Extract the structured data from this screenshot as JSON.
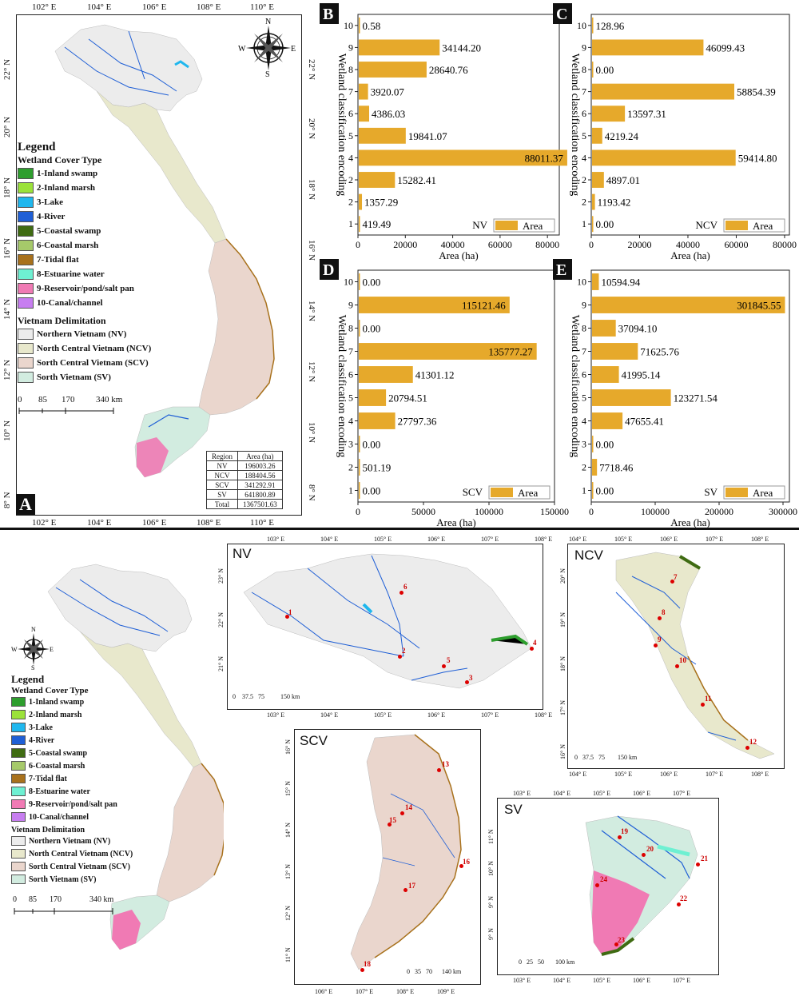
{
  "panel_a": {
    "letter": "A",
    "top_ticks": [
      "102° E",
      "104° E",
      "106° E",
      "108° E",
      "110° E"
    ],
    "bottom_ticks": [
      "102° E",
      "104° E",
      "106° E",
      "108° E",
      "110° E"
    ],
    "lat_ticks": [
      "22° N",
      "20° N",
      "18° N",
      "16° N",
      "14° N",
      "12° N",
      "10° N",
      "8° N"
    ],
    "compass": {
      "n": "N",
      "s": "S",
      "e": "E",
      "w": "W"
    },
    "scale": [
      "0",
      "85",
      "170",
      "340 km"
    ],
    "area_table": {
      "header": [
        "Region",
        "Area (ha)"
      ],
      "rows": [
        [
          "NV",
          "196003.26"
        ],
        [
          "NCV",
          "188404.56"
        ],
        [
          "SCV",
          "341292.91"
        ],
        [
          "SV",
          "641800.89"
        ],
        [
          "Total",
          "1367501.63"
        ]
      ]
    }
  },
  "legend": {
    "title": "Legend",
    "cover_title": "Wetland Cover Type",
    "cover_items": [
      {
        "label": "1-Inland swamp",
        "color": "#2e9e2e"
      },
      {
        "label": "2-Inland marsh",
        "color": "#9be23a"
      },
      {
        "label": "3-Lake",
        "color": "#1fb7ee"
      },
      {
        "label": "4-River",
        "color": "#1f5fd6"
      },
      {
        "label": "5-Coastal swamp",
        "color": "#3f6b12"
      },
      {
        "label": "6-Coastal marsh",
        "color": "#a6c96a"
      },
      {
        "label": "7-Tidal flat",
        "color": "#a8711c"
      },
      {
        "label": "8-Estuarine water",
        "color": "#6ef0d2"
      },
      {
        "label": "9-Reservoir/pond/salt pan",
        "color": "#f07ab4"
      },
      {
        "label": "10-Canal/channel",
        "color": "#c77ef0"
      }
    ],
    "delim_title": "Vietnam Delimitation",
    "delim_items": [
      {
        "label": "Northern Vietnam (NV)",
        "color": "#ececec"
      },
      {
        "label": "North Central Vietnam (NCV)",
        "color": "#e8e8cc"
      },
      {
        "label": "Sorth Central Vietnam (SCV)",
        "color": "#ead6cd"
      },
      {
        "label": "Sorth Vietnam (SV)",
        "color": "#d2ece0"
      }
    ]
  },
  "colors": {
    "bar": "#e6a92b",
    "land_nv": "#ececec",
    "land_ncv": "#e8e8cc",
    "land_scv": "#ead6cd",
    "land_sv": "#d2ece0",
    "river": "#1f5fd6",
    "site": "#dd0000"
  },
  "chart_data": [
    {
      "panel": "B",
      "type": "bar",
      "orientation": "horizontal",
      "legend": "Area",
      "region_label": "NV",
      "xlabel": "Area (ha)",
      "ylabel": "Wetland classification encoding",
      "categories": [
        "10",
        "9",
        "8",
        "7",
        "6",
        "5",
        "4",
        "2",
        "2",
        "1"
      ],
      "values": [
        0.58,
        34144.2,
        28640.76,
        3920.07,
        4386.03,
        19841.07,
        88011.37,
        15282.41,
        1357.29,
        419.49
      ],
      "value_labels": [
        "0.58",
        "34144.20",
        "28640.76",
        "3920.07",
        "4386.03",
        "19841.07",
        "88011.37",
        "15282.41",
        "1357.29",
        "419.49"
      ],
      "xlim": [
        0,
        85000
      ],
      "xticks": [
        "0",
        "20000",
        "40000",
        "60000",
        "80000"
      ]
    },
    {
      "panel": "C",
      "type": "bar",
      "orientation": "horizontal",
      "legend": "Area",
      "region_label": "NCV",
      "xlabel": "Area (ha)",
      "ylabel": "Wetland classification encoding",
      "categories": [
        "10",
        "9",
        "8",
        "7",
        "6",
        "5",
        "4",
        "2",
        "2",
        "1"
      ],
      "values": [
        128.96,
        46099.43,
        0.0,
        58854.39,
        13597.31,
        4219.24,
        59414.8,
        4897.01,
        1193.42,
        0.0
      ],
      "value_labels": [
        "128.96",
        "46099.43",
        "0.00",
        "58854.39",
        "13597.31",
        "4219.24",
        "59414.80",
        "4897.01",
        "1193.42",
        "0.00"
      ],
      "xlim": [
        0,
        82000
      ],
      "xticks": [
        "0",
        "20000",
        "40000",
        "60000",
        "80000"
      ]
    },
    {
      "panel": "D",
      "type": "bar",
      "orientation": "horizontal",
      "legend": "Area",
      "region_label": "SCV",
      "xlabel": "Area (ha)",
      "ylabel": "Wetland classification encoding",
      "categories": [
        "10",
        "9",
        "8",
        "7",
        "6",
        "5",
        "4",
        "3",
        "2",
        "1"
      ],
      "values": [
        0.0,
        115121.46,
        0.0,
        135777.27,
        41301.12,
        20794.51,
        27797.36,
        0.0,
        501.19,
        0.0
      ],
      "value_labels": [
        "0.00",
        "115121.46",
        "0.00",
        "135777.27",
        "41301.12",
        "20794.51",
        "27797.36",
        "0.00",
        "501.19",
        "0.00"
      ],
      "xlim": [
        0,
        150000
      ],
      "xticks": [
        "0",
        "50000",
        "100000",
        "150000"
      ]
    },
    {
      "panel": "E",
      "type": "bar",
      "orientation": "horizontal",
      "legend": "Area",
      "region_label": "SV",
      "xlabel": "Area (ha)",
      "ylabel": "Wetland classification encoding",
      "categories": [
        "10",
        "9",
        "8",
        "7",
        "6",
        "5",
        "4",
        "3",
        "2",
        "1"
      ],
      "values": [
        10594.94,
        301845.55,
        37094.1,
        71625.76,
        41995.14,
        123271.54,
        47655.41,
        0.0,
        7718.46,
        0.0
      ],
      "value_labels": [
        "10594.94",
        "301845.55",
        "37094.10",
        "71625.76",
        "41995.14",
        "123271.54",
        "47655.41",
        "0.00",
        "7718.46",
        "0.00"
      ],
      "xlim": [
        0,
        310000
      ],
      "xticks": [
        "0",
        "100000",
        "200000",
        "300000"
      ]
    }
  ],
  "bottom": {
    "compass": {
      "n": "N",
      "s": "S",
      "e": "E",
      "w": "W"
    },
    "scale": [
      "0",
      "85",
      "170",
      "340 km"
    ],
    "nv": {
      "title": "NV",
      "top_ticks": [
        "103° E",
        "104° E",
        "105° E",
        "106° E",
        "107° E",
        "108° E"
      ],
      "bottom_ticks": [
        "103° E",
        "104° E",
        "105° E",
        "106° E",
        "107° E",
        "108° E"
      ],
      "lat": [
        "23° N",
        "22° N",
        "21° N"
      ],
      "scale": [
        "0",
        "37.5",
        "75",
        "150 km"
      ],
      "sites": [
        "1",
        "2",
        "3",
        "4",
        "5",
        "6"
      ]
    },
    "ncv": {
      "title": "NCV",
      "top_ticks": [
        "104° E",
        "105° E",
        "106° E",
        "107° E",
        "108° E"
      ],
      "bottom_ticks": [
        "104° E",
        "105° E",
        "106° E",
        "107° E",
        "108° E"
      ],
      "lat": [
        "20° N",
        "19° N",
        "18° N",
        "17° N",
        "16° N"
      ],
      "scale": [
        "0",
        "37.5",
        "75",
        "150 km"
      ],
      "sites": [
        "7",
        "8",
        "9",
        "10",
        "11",
        "12"
      ]
    },
    "scv": {
      "title": "SCV",
      "bottom_ticks": [
        "106° E",
        "107° E",
        "108° E",
        "109° E"
      ],
      "lat": [
        "16° N",
        "15° N",
        "14° N",
        "13° N",
        "12° N",
        "11° N"
      ],
      "scale": [
        "0",
        "35",
        "70",
        "140 km"
      ],
      "sites": [
        "13",
        "14",
        "15",
        "16",
        "17",
        "18"
      ]
    },
    "sv": {
      "title": "SV",
      "top_ticks": [
        "103° E",
        "104° E",
        "105° E",
        "106° E",
        "107° E"
      ],
      "bottom_ticks": [
        "103° E",
        "104° E",
        "105° E",
        "106° E",
        "107° E"
      ],
      "lat": [
        "11° N",
        "10° N",
        "9° N",
        "9° N"
      ],
      "scale": [
        "0",
        "25",
        "50",
        "100 km"
      ],
      "sites": [
        "19",
        "20",
        "21",
        "22",
        "23",
        "24"
      ]
    }
  }
}
